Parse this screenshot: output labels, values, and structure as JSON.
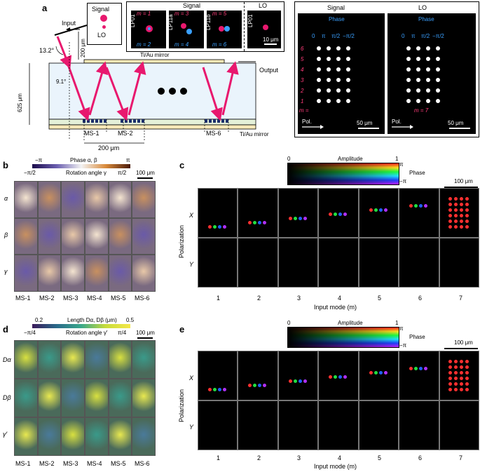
{
  "panels": {
    "a": {
      "letter": "a",
      "input_label": "Input",
      "output_label": "Output",
      "angle_in": "13.2°",
      "angle_inside": "9.1°",
      "thickness": "625 μm",
      "gap": "200 μm",
      "spacing": "200 μm",
      "mirror_top": "Ti/Au mirror",
      "mirror_bottom": "Ti/Au mirror",
      "ms_labels": [
        "MS-1",
        "MS-2",
        "MS-6"
      ],
      "legend_signal": "Signal",
      "legend_lo": "LO",
      "inset_signal_title": "Signal",
      "inset_lo_title": "LO",
      "modes_top": [
        "m = 1",
        "m = 3",
        "m = 5"
      ],
      "modes_bottom": [
        "m = 2",
        "m = 4",
        "m = 6"
      ],
      "lp_top": [
        "LP01",
        "LP11a",
        "LP11b"
      ],
      "lo_lp": "LP01",
      "scale_inset": "10 μm",
      "grid_signal_title": "Signal",
      "grid_lo_title": "LO",
      "phase_word": "Phase",
      "phase_values": [
        "0",
        "π",
        "π/2",
        "−π/2"
      ],
      "m_rows": [
        "6",
        "5",
        "4",
        "3",
        "2",
        "1"
      ],
      "m_label": "m =",
      "lo_m": "m = 7",
      "pol": "Pol.",
      "scale_grid": "50 μm"
    },
    "b": {
      "letter": "b",
      "cb_top_left": "−π",
      "cb_top_mid": "Phase α, β",
      "cb_top_right": "π",
      "cb_bot_left": "−π/2",
      "cb_bot_mid": "Rotation angle γ",
      "cb_bot_right": "π/2",
      "scale": "100 μm",
      "rows": [
        "α",
        "β",
        "γ"
      ],
      "cols": [
        "MS-1",
        "MS-2",
        "MS-3",
        "MS-4",
        "MS-5",
        "MS-6"
      ]
    },
    "d": {
      "letter": "d",
      "cb_top_left": "0.2",
      "cb_top_mid": "Length Dα, Dβ (μm)",
      "cb_top_right": "0.5",
      "cb_bot_left": "−π/4",
      "cb_bot_mid": "Rotation angle γ′",
      "cb_bot_right": "π/4",
      "scale": "100 μm",
      "rows": [
        "Dα",
        "Dβ",
        "γ′"
      ],
      "cols": [
        "MS-1",
        "MS-2",
        "MS-3",
        "MS-4",
        "MS-5",
        "MS-6"
      ]
    },
    "c": {
      "letter": "c",
      "cb_left": "0",
      "cb_title": "Amplitude",
      "cb_right": "1",
      "phase": "Phase",
      "phase_top": "π",
      "phase_bot": "−π",
      "scale": "100 μm",
      "pol_axis": "Polarization",
      "row_x": "X",
      "row_y": "Y",
      "cols": [
        "1",
        "2",
        "3",
        "4",
        "5",
        "6",
        "7"
      ],
      "xlabel": "Input mode (m)"
    },
    "e": {
      "letter": "e",
      "cb_left": "0",
      "cb_title": "Amplitude",
      "cb_right": "1",
      "phase": "Phase",
      "phase_top": "π",
      "phase_bot": "−π",
      "scale": "100 μm",
      "pol_axis": "Polarization",
      "row_x": "X",
      "row_y": "Y",
      "cols": [
        "1",
        "2",
        "3",
        "4",
        "5",
        "6",
        "7"
      ],
      "xlabel": "Input mode (m)"
    }
  },
  "colors": {
    "beam": "#e8186e",
    "phase_blue": "#3aa0ff",
    "mode_label": "#ff3c7a"
  }
}
